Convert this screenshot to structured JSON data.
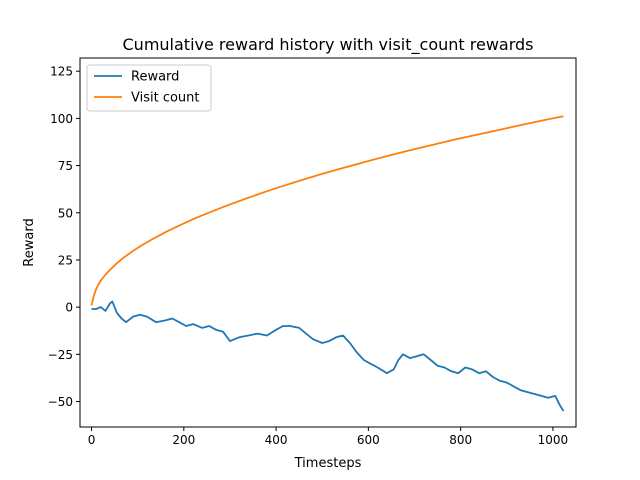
{
  "chart_data": {
    "type": "line",
    "title": "Cumulative reward history with visit_count rewards",
    "xlabel": "Timesteps",
    "ylabel": "Reward",
    "xlim": [
      -25,
      1050
    ],
    "ylim": [
      -63.5,
      132
    ],
    "xticks": [
      0,
      200,
      400,
      600,
      800,
      1000
    ],
    "yticks": [
      -50,
      -25,
      0,
      25,
      50,
      75,
      100,
      125
    ],
    "grid": false,
    "legend_position": "top-left",
    "series": [
      {
        "name": "Reward",
        "color": "#1f77b4",
        "x": [
          0,
          10,
          20,
          30,
          40,
          45,
          55,
          65,
          75,
          90,
          105,
          120,
          140,
          160,
          175,
          190,
          205,
          220,
          240,
          255,
          270,
          285,
          300,
          320,
          340,
          360,
          380,
          400,
          415,
          430,
          450,
          465,
          480,
          500,
          515,
          530,
          545,
          560,
          575,
          590,
          605,
          620,
          640,
          655,
          665,
          675,
          690,
          705,
          720,
          735,
          750,
          765,
          780,
          795,
          810,
          825,
          840,
          855,
          870,
          885,
          900,
          915,
          930,
          945,
          960,
          975,
          990,
          1005,
          1015,
          1023
        ],
        "y": [
          -1,
          -1,
          0,
          -2,
          2,
          3,
          -3,
          -6,
          -8,
          -5,
          -4,
          -5,
          -8,
          -7,
          -6,
          -8,
          -10,
          -9,
          -11,
          -10,
          -12,
          -13,
          -18,
          -16,
          -15,
          -14,
          -15,
          -12,
          -10,
          -10,
          -11,
          -14,
          -17,
          -19,
          -18,
          -16,
          -15,
          -19,
          -24,
          -28,
          -30,
          -32,
          -35,
          -33,
          -28,
          -25,
          -27,
          -26,
          -25,
          -28,
          -31,
          -32,
          -34,
          -35,
          -32,
          -33,
          -35,
          -34,
          -37,
          -39,
          -40,
          -42,
          -44,
          -45,
          -46,
          -47,
          -48,
          -47,
          -52,
          -55
        ]
      },
      {
        "name": "Visit count",
        "color": "#ff7f0e",
        "x": [
          0,
          2,
          5,
          10,
          15,
          20,
          30,
          40,
          55,
          70,
          90,
          110,
          135,
          160,
          190,
          220,
          255,
          290,
          330,
          370,
          410,
          450,
          495,
          540,
          590,
          640,
          690,
          740,
          790,
          840,
          890,
          940,
          990,
          1023
        ],
        "y": [
          1,
          3,
          6,
          9.5,
          12,
          14.1,
          17.2,
          19.8,
          23.3,
          26.3,
          29.8,
          32.9,
          36.4,
          39.7,
          43.2,
          46.6,
          50.1,
          53.5,
          57.1,
          60.6,
          63.8,
          66.9,
          70.3,
          73.4,
          76.8,
          80.0,
          83.1,
          86.0,
          88.9,
          91.6,
          94.3,
          97.0,
          99.5,
          101.1
        ]
      }
    ]
  }
}
